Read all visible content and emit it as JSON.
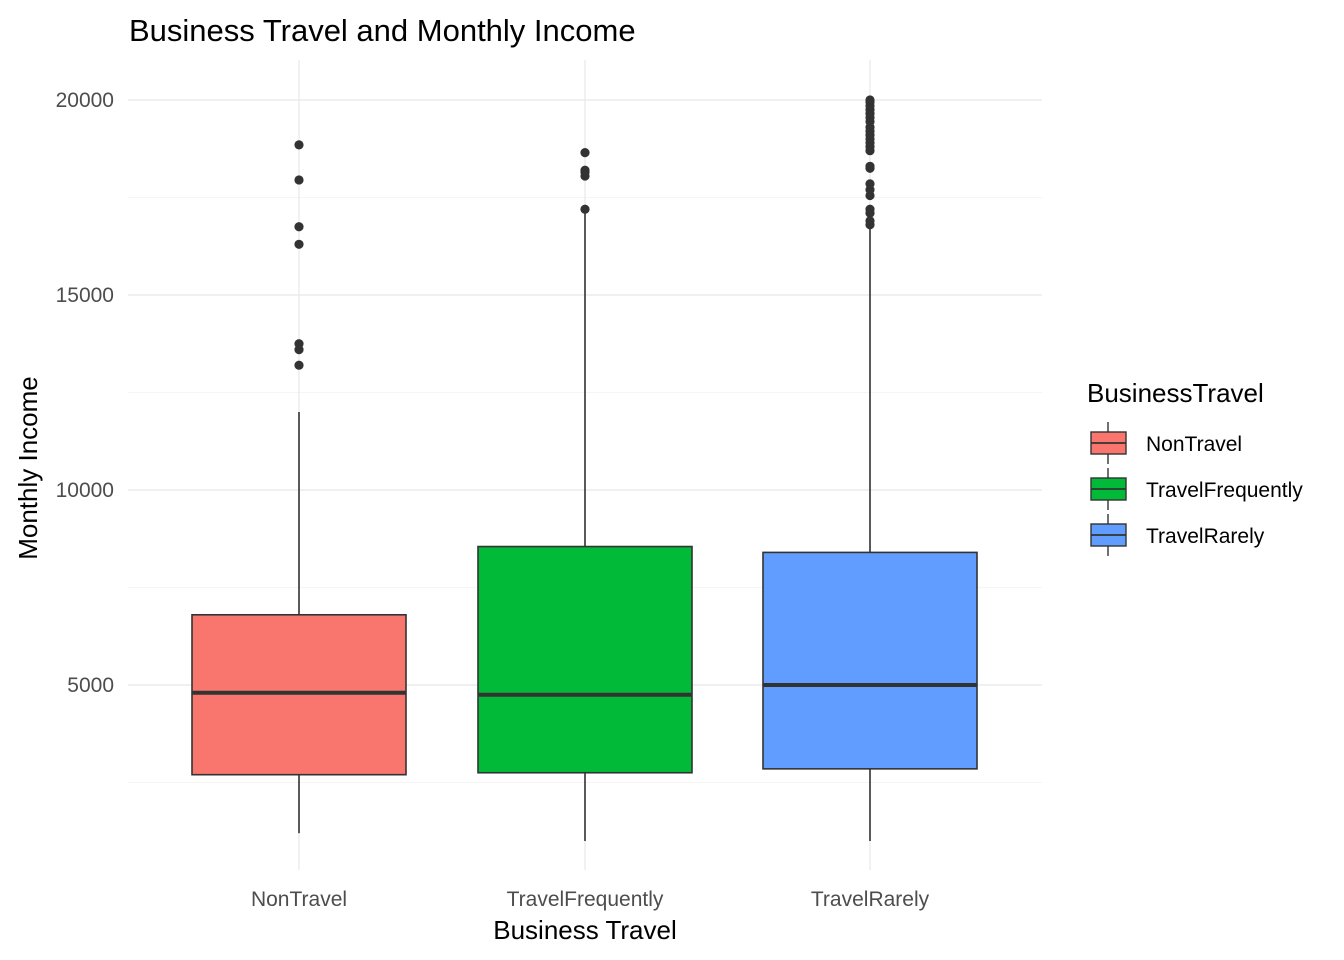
{
  "chart_data": {
    "type": "box",
    "title": "Business Travel and Monthly Income",
    "xlabel": "Business Travel",
    "ylabel": "Monthly Income",
    "categories": [
      "NonTravel",
      "TravelFrequently",
      "TravelRarely"
    ],
    "ylim": [
      700,
      20900
    ],
    "yticks": [
      5000,
      10000,
      15000,
      20000
    ],
    "ytick_labels": [
      "5000",
      "10000",
      "15000",
      "20000"
    ],
    "grid": true,
    "legend": {
      "title": "BusinessTravel",
      "position": "right",
      "items": [
        "NonTravel",
        "TravelFrequently",
        "TravelRarely"
      ]
    },
    "colors": {
      "NonTravel": "#F8766D",
      "TravelFrequently": "#00BA38",
      "TravelRarely": "#619CFF"
    },
    "boxes": [
      {
        "category": "NonTravel",
        "whisker_low": 1200,
        "q1": 2700,
        "median": 4800,
        "q3": 6800,
        "whisker_high": 12000,
        "outliers": [
          13200,
          13600,
          13750,
          16300,
          16750,
          17950,
          18850
        ]
      },
      {
        "category": "TravelFrequently",
        "whisker_low": 1000,
        "q1": 2750,
        "median": 4750,
        "q3": 8550,
        "whisker_high": 17100,
        "outliers": [
          17200,
          18050,
          18150,
          18200,
          18650
        ]
      },
      {
        "category": "TravelRarely",
        "whisker_low": 1000,
        "q1": 2850,
        "median": 5000,
        "q3": 8400,
        "whisker_high": 16700,
        "outliers": [
          16800,
          16900,
          17100,
          17200,
          17550,
          17700,
          17850,
          18250,
          18300,
          18700,
          18800,
          18900,
          19000,
          19100,
          19200,
          19300,
          19450,
          19550,
          19650,
          19750,
          19850,
          19950,
          20000
        ]
      }
    ]
  }
}
